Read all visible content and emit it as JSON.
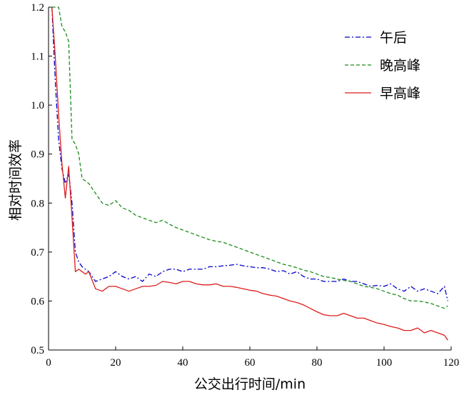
{
  "chart_data": {
    "type": "line",
    "xlabel": "公交出行时间/min",
    "ylabel": "相对时间效率",
    "xlim": [
      0,
      120
    ],
    "ylim": [
      0.5,
      1.2
    ],
    "xticks": [
      0,
      20,
      40,
      60,
      80,
      100,
      120
    ],
    "yticks": [
      0.5,
      0.6,
      0.7,
      0.8,
      0.9,
      1.0,
      1.1,
      1.2
    ],
    "ytick_labels": [
      "0.5",
      "0.6",
      "0.7",
      "0.8",
      "0.9",
      "1.0",
      "1.1",
      "1.2"
    ],
    "grid": false,
    "legend_position": "top-right",
    "series": [
      {
        "name": "午后",
        "color": "#0000cc",
        "dash": "dashdot",
        "x": [
          1,
          2,
          3,
          4,
          5,
          6,
          7,
          8,
          9,
          10,
          11,
          12,
          14,
          16,
          18,
          20,
          22,
          24,
          26,
          28,
          30,
          32,
          34,
          36,
          38,
          40,
          42,
          44,
          46,
          48,
          50,
          52,
          54,
          56,
          58,
          60,
          62,
          64,
          66,
          68,
          70,
          72,
          74,
          76,
          78,
          80,
          82,
          84,
          86,
          88,
          90,
          92,
          94,
          96,
          98,
          100,
          102,
          104,
          106,
          108,
          110,
          112,
          114,
          116,
          118,
          119
        ],
        "y": [
          1.2,
          1.05,
          0.93,
          0.87,
          0.84,
          0.86,
          0.8,
          0.7,
          0.68,
          0.67,
          0.665,
          0.66,
          0.64,
          0.645,
          0.65,
          0.66,
          0.65,
          0.645,
          0.65,
          0.64,
          0.655,
          0.65,
          0.66,
          0.665,
          0.665,
          0.66,
          0.665,
          0.665,
          0.665,
          0.67,
          0.67,
          0.672,
          0.673,
          0.675,
          0.672,
          0.67,
          0.668,
          0.668,
          0.665,
          0.66,
          0.662,
          0.655,
          0.66,
          0.65,
          0.645,
          0.645,
          0.64,
          0.64,
          0.64,
          0.645,
          0.64,
          0.64,
          0.635,
          0.63,
          0.632,
          0.63,
          0.635,
          0.625,
          0.62,
          0.63,
          0.62,
          0.625,
          0.62,
          0.615,
          0.63,
          0.6
        ]
      },
      {
        "name": "晚高峰",
        "color": "#1a8c1a",
        "dash": "dashed",
        "x": [
          1,
          2,
          3,
          4,
          5,
          6,
          7,
          8,
          9,
          10,
          11,
          12,
          14,
          16,
          18,
          20,
          22,
          24,
          26,
          28,
          30,
          32,
          34,
          36,
          38,
          40,
          42,
          44,
          46,
          48,
          50,
          52,
          54,
          56,
          58,
          60,
          62,
          64,
          66,
          68,
          70,
          72,
          74,
          76,
          78,
          80,
          82,
          84,
          86,
          88,
          90,
          92,
          94,
          96,
          98,
          100,
          102,
          104,
          106,
          108,
          110,
          112,
          114,
          116,
          118,
          119
        ],
        "y": [
          1.2,
          1.2,
          1.2,
          1.16,
          1.15,
          1.13,
          0.93,
          0.92,
          0.9,
          0.85,
          0.845,
          0.84,
          0.82,
          0.8,
          0.795,
          0.805,
          0.79,
          0.785,
          0.775,
          0.77,
          0.765,
          0.76,
          0.765,
          0.757,
          0.75,
          0.745,
          0.74,
          0.735,
          0.73,
          0.725,
          0.722,
          0.72,
          0.715,
          0.71,
          0.705,
          0.7,
          0.695,
          0.69,
          0.685,
          0.68,
          0.675,
          0.672,
          0.668,
          0.663,
          0.66,
          0.655,
          0.65,
          0.648,
          0.645,
          0.642,
          0.64,
          0.635,
          0.63,
          0.628,
          0.625,
          0.62,
          0.615,
          0.612,
          0.605,
          0.6,
          0.6,
          0.598,
          0.595,
          0.59,
          0.585,
          0.59
        ]
      },
      {
        "name": "早高峰",
        "color": "#dd1c1c",
        "dash": "solid",
        "x": [
          1,
          2,
          3,
          4,
          5,
          6,
          7,
          8,
          9,
          10,
          11,
          12,
          14,
          16,
          18,
          20,
          22,
          24,
          26,
          28,
          30,
          32,
          34,
          36,
          38,
          40,
          42,
          44,
          46,
          48,
          50,
          52,
          54,
          56,
          58,
          60,
          62,
          64,
          66,
          68,
          70,
          72,
          74,
          76,
          78,
          80,
          82,
          84,
          86,
          88,
          90,
          92,
          94,
          96,
          98,
          100,
          102,
          104,
          106,
          108,
          110,
          112,
          114,
          116,
          118,
          119
        ],
        "y": [
          1.2,
          1.1,
          0.98,
          0.88,
          0.81,
          0.875,
          0.77,
          0.66,
          0.665,
          0.66,
          0.655,
          0.66,
          0.625,
          0.62,
          0.63,
          0.63,
          0.625,
          0.62,
          0.625,
          0.63,
          0.63,
          0.632,
          0.64,
          0.638,
          0.635,
          0.64,
          0.64,
          0.635,
          0.633,
          0.633,
          0.635,
          0.63,
          0.63,
          0.628,
          0.625,
          0.622,
          0.62,
          0.615,
          0.612,
          0.61,
          0.605,
          0.6,
          0.597,
          0.592,
          0.585,
          0.578,
          0.572,
          0.57,
          0.57,
          0.575,
          0.57,
          0.565,
          0.565,
          0.56,
          0.555,
          0.552,
          0.548,
          0.545,
          0.54,
          0.54,
          0.545,
          0.535,
          0.54,
          0.535,
          0.53,
          0.52
        ]
      }
    ]
  }
}
